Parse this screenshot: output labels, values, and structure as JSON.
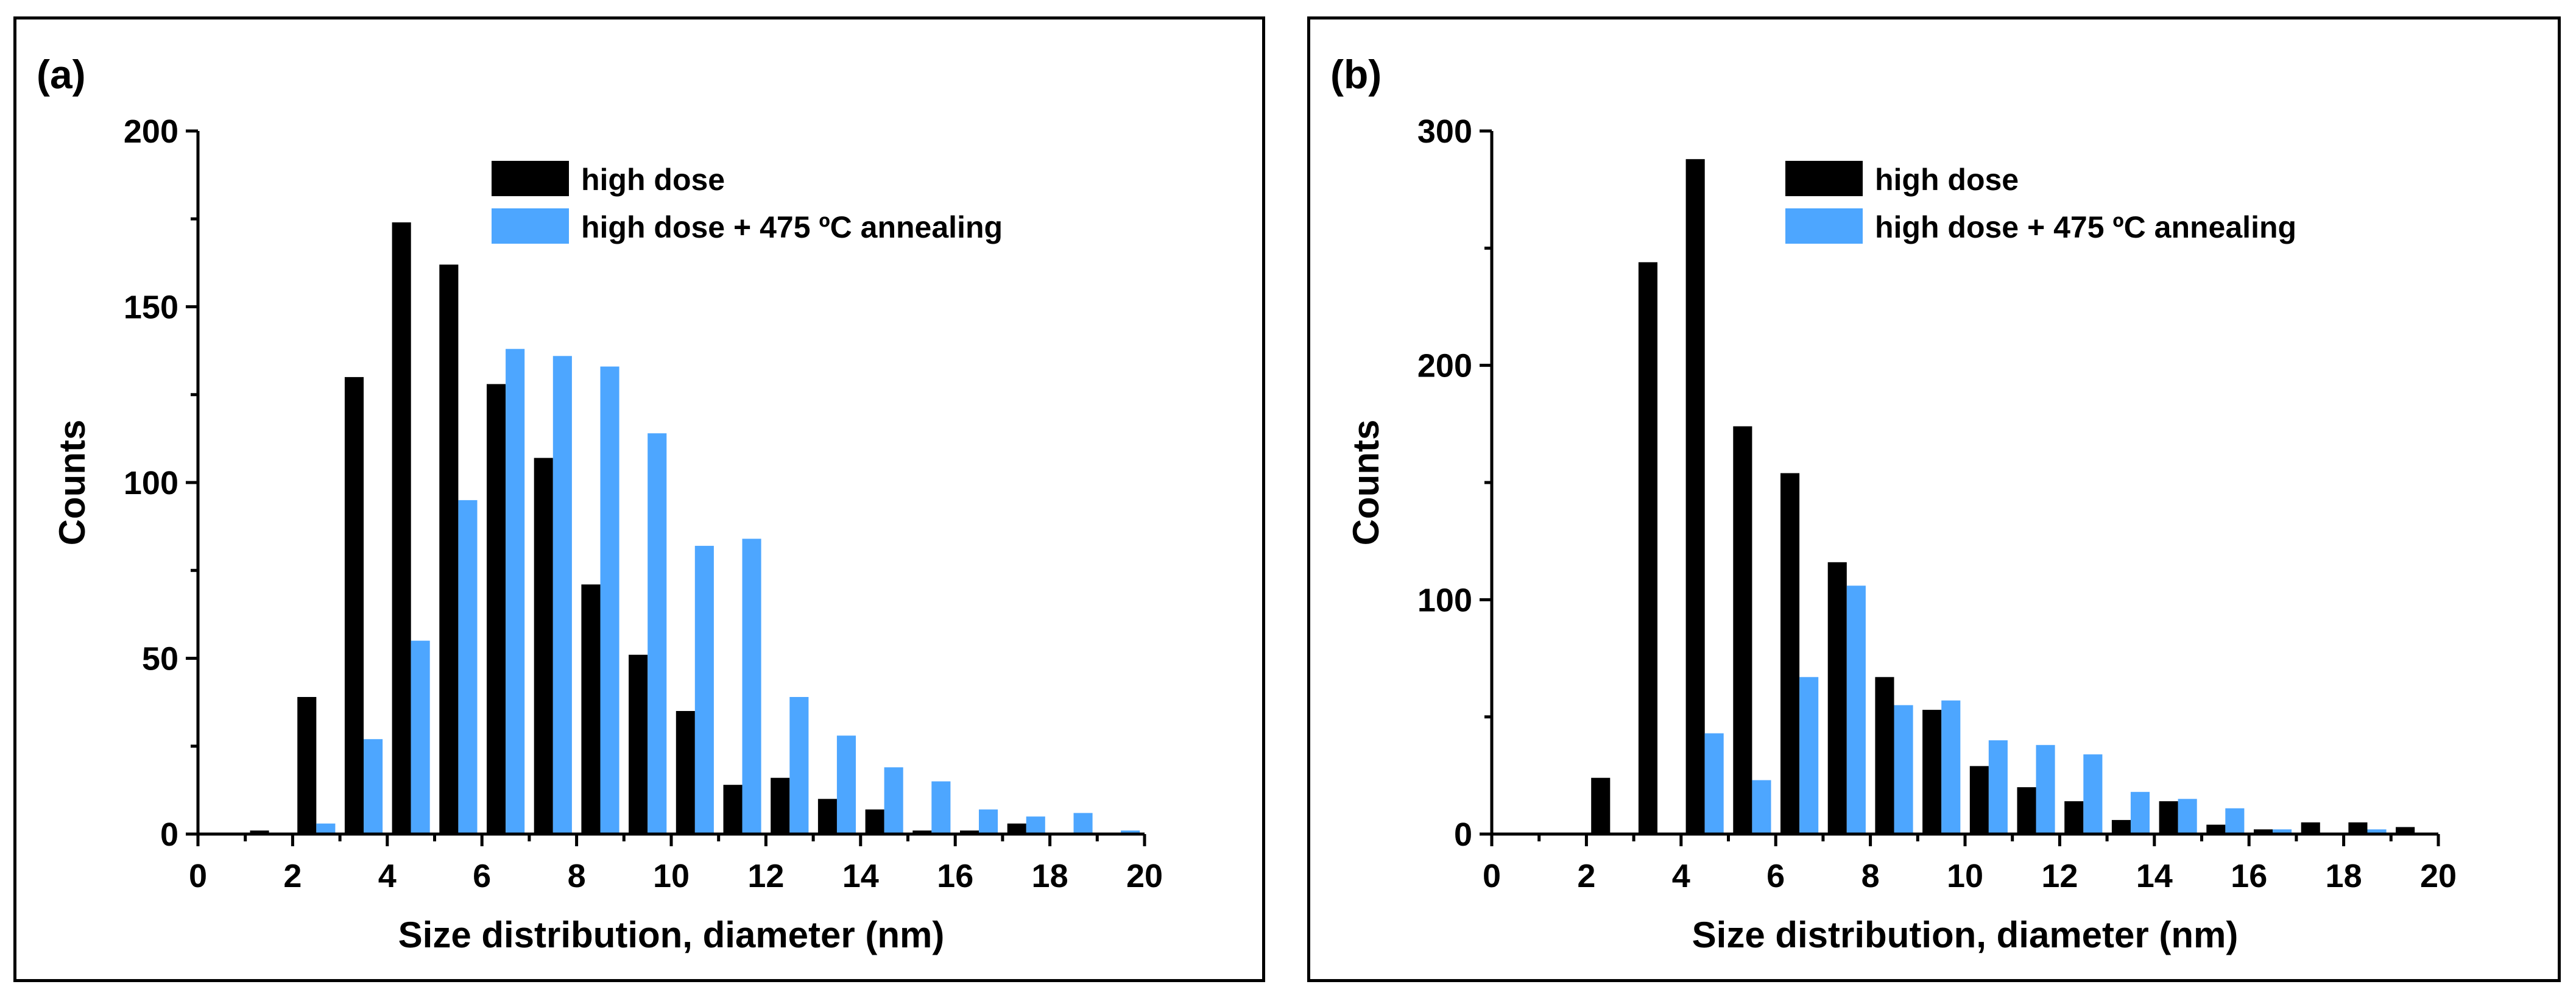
{
  "chart_data": [
    {
      "type": "bar",
      "panel_label": "(a)",
      "title": "",
      "xlabel": "Size distribution, diameter (nm)",
      "ylabel": "Counts",
      "xlim": [
        0,
        20
      ],
      "ylim": [
        0,
        200
      ],
      "xticks": [
        0,
        2,
        4,
        6,
        8,
        10,
        12,
        14,
        16,
        18,
        20
      ],
      "yticks": [
        0,
        50,
        100,
        150,
        200
      ],
      "legend_position": "top-center",
      "grid": false,
      "categories": [
        "1",
        "2",
        "3",
        "4",
        "5",
        "6",
        "7",
        "8",
        "9",
        "10",
        "11",
        "12",
        "13",
        "14",
        "15",
        "16",
        "17",
        "18",
        "19"
      ],
      "series": [
        {
          "name": "high dose",
          "color": "#000000",
          "values": [
            1,
            39,
            130,
            174,
            162,
            128,
            107,
            71,
            51,
            35,
            14,
            16,
            10,
            7,
            1,
            1,
            3,
            0,
            0
          ]
        },
        {
          "name": "high dose + 475 ºC annealing",
          "color": "#4da6ff",
          "values": [
            0,
            3,
            27,
            55,
            95,
            138,
            136,
            133,
            114,
            82,
            84,
            39,
            28,
            19,
            15,
            7,
            5,
            6,
            1
          ]
        }
      ]
    },
    {
      "type": "bar",
      "panel_label": "(b)",
      "title": "",
      "xlabel": "Size distribution, diameter (nm)",
      "ylabel": "Counts",
      "xlim": [
        0,
        20
      ],
      "ylim": [
        0,
        300
      ],
      "xticks": [
        0,
        2,
        4,
        6,
        8,
        10,
        12,
        14,
        16,
        18,
        20
      ],
      "yticks": [
        0,
        100,
        200,
        300
      ],
      "legend_position": "top-center",
      "grid": false,
      "categories": [
        "1",
        "2",
        "3",
        "4",
        "5",
        "6",
        "7",
        "8",
        "9",
        "10",
        "11",
        "12",
        "13",
        "14",
        "15",
        "16",
        "17",
        "18",
        "19"
      ],
      "series": [
        {
          "name": "high dose",
          "color": "#000000",
          "values": [
            0,
            24,
            244,
            288,
            174,
            154,
            116,
            67,
            53,
            29,
            20,
            14,
            6,
            14,
            4,
            2,
            5,
            5,
            3
          ]
        },
        {
          "name": "high dose + 475 ºC annealing",
          "color": "#4da6ff",
          "values": [
            0,
            0,
            0,
            43,
            23,
            67,
            106,
            55,
            57,
            40,
            38,
            34,
            18,
            15,
            11,
            2,
            0,
            2,
            0
          ]
        }
      ]
    }
  ]
}
